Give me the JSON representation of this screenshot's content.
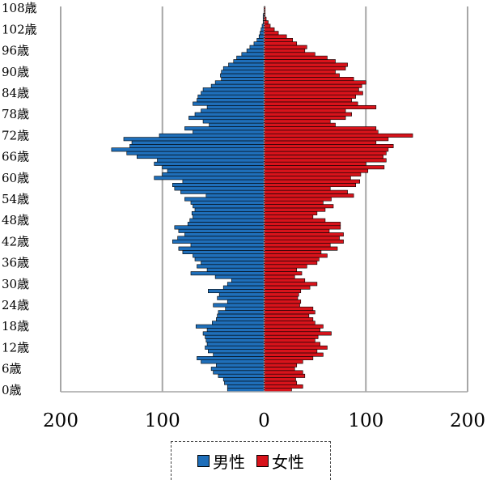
{
  "chart_data": {
    "type": "bar",
    "orientation": "horizontal",
    "title": "",
    "xlabel": "",
    "ylabel": "",
    "xlim": [
      -200,
      200
    ],
    "x_tick_labels": [
      "200",
      "100",
      "0",
      "100",
      "200"
    ],
    "y_tick_labels": [
      "0歳",
      "6歳",
      "12歳",
      "18歳",
      "24歳",
      "30歳",
      "36歳",
      "42歳",
      "48歳",
      "54歳",
      "60歳",
      "66歳",
      "72歳",
      "78歳",
      "84歳",
      "90歳",
      "96歳",
      "102歳",
      "108歳"
    ],
    "y_tick_ages": [
      0,
      6,
      12,
      18,
      24,
      30,
      36,
      42,
      48,
      54,
      60,
      66,
      72,
      78,
      84,
      90,
      96,
      102,
      108
    ],
    "ages": [
      0,
      1,
      2,
      3,
      4,
      5,
      6,
      7,
      8,
      9,
      10,
      11,
      12,
      13,
      14,
      15,
      16,
      17,
      18,
      19,
      20,
      21,
      22,
      23,
      24,
      25,
      26,
      27,
      28,
      29,
      30,
      31,
      32,
      33,
      34,
      35,
      36,
      37,
      38,
      39,
      40,
      41,
      42,
      43,
      44,
      45,
      46,
      47,
      48,
      49,
      50,
      51,
      52,
      53,
      54,
      55,
      56,
      57,
      58,
      59,
      60,
      61,
      62,
      63,
      64,
      65,
      66,
      67,
      68,
      69,
      70,
      71,
      72,
      73,
      74,
      75,
      76,
      77,
      78,
      79,
      80,
      81,
      82,
      83,
      84,
      85,
      86,
      87,
      88,
      89,
      90,
      91,
      92,
      93,
      94,
      95,
      96,
      97,
      98,
      99,
      100,
      101,
      102,
      103,
      104,
      105,
      106,
      107,
      108
    ],
    "grid": true,
    "legend_position": "bottom",
    "series": [
      {
        "name": "男性",
        "color": "#1f6fba",
        "values": [
          36,
          36,
          39,
          40,
          45,
          50,
          52,
          47,
          62,
          66,
          50,
          55,
          58,
          56,
          57,
          58,
          60,
          56,
          67,
          51,
          47,
          46,
          45,
          38,
          50,
          36,
          46,
          44,
          55,
          40,
          36,
          32,
          48,
          72,
          56,
          66,
          62,
          68,
          70,
          80,
          84,
          72,
          90,
          85,
          78,
          84,
          88,
          75,
          73,
          70,
          71,
          68,
          70,
          72,
          78,
          57,
          82,
          88,
          90,
          80,
          108,
          100,
          95,
          100,
          108,
          105,
          125,
          135,
          150,
          132,
          130,
          138,
          103,
          70,
          78,
          54,
          60,
          74,
          68,
          62,
          56,
          70,
          66,
          65,
          62,
          60,
          52,
          48,
          42,
          43,
          42,
          40,
          35,
          30,
          27,
          22,
          17,
          14,
          10,
          7,
          5,
          4,
          3,
          2,
          1,
          1,
          1,
          0,
          0
        ]
      },
      {
        "name": "女性",
        "color": "#d8131b",
        "values": [
          27,
          38,
          32,
          31,
          40,
          38,
          30,
          32,
          38,
          48,
          58,
          52,
          62,
          55,
          50,
          53,
          66,
          55,
          58,
          50,
          48,
          44,
          50,
          48,
          35,
          36,
          33,
          34,
          36,
          45,
          52,
          40,
          30,
          37,
          32,
          42,
          52,
          54,
          62,
          56,
          72,
          65,
          78,
          74,
          78,
          64,
          75,
          75,
          60,
          48,
          52,
          60,
          68,
          58,
          66,
          88,
          82,
          65,
          90,
          94,
          85,
          95,
          102,
          118,
          100,
          120,
          117,
          120,
          122,
          127,
          110,
          122,
          146,
          112,
          110,
          70,
          65,
          80,
          86,
          80,
          110,
          92,
          86,
          90,
          97,
          93,
          96,
          100,
          88,
          74,
          70,
          80,
          82,
          70,
          62,
          50,
          40,
          42,
          32,
          28,
          22,
          14,
          10,
          6,
          4,
          2,
          1,
          1,
          1
        ]
      }
    ]
  },
  "legend": {
    "male_label": "男性",
    "female_label": "女性"
  }
}
